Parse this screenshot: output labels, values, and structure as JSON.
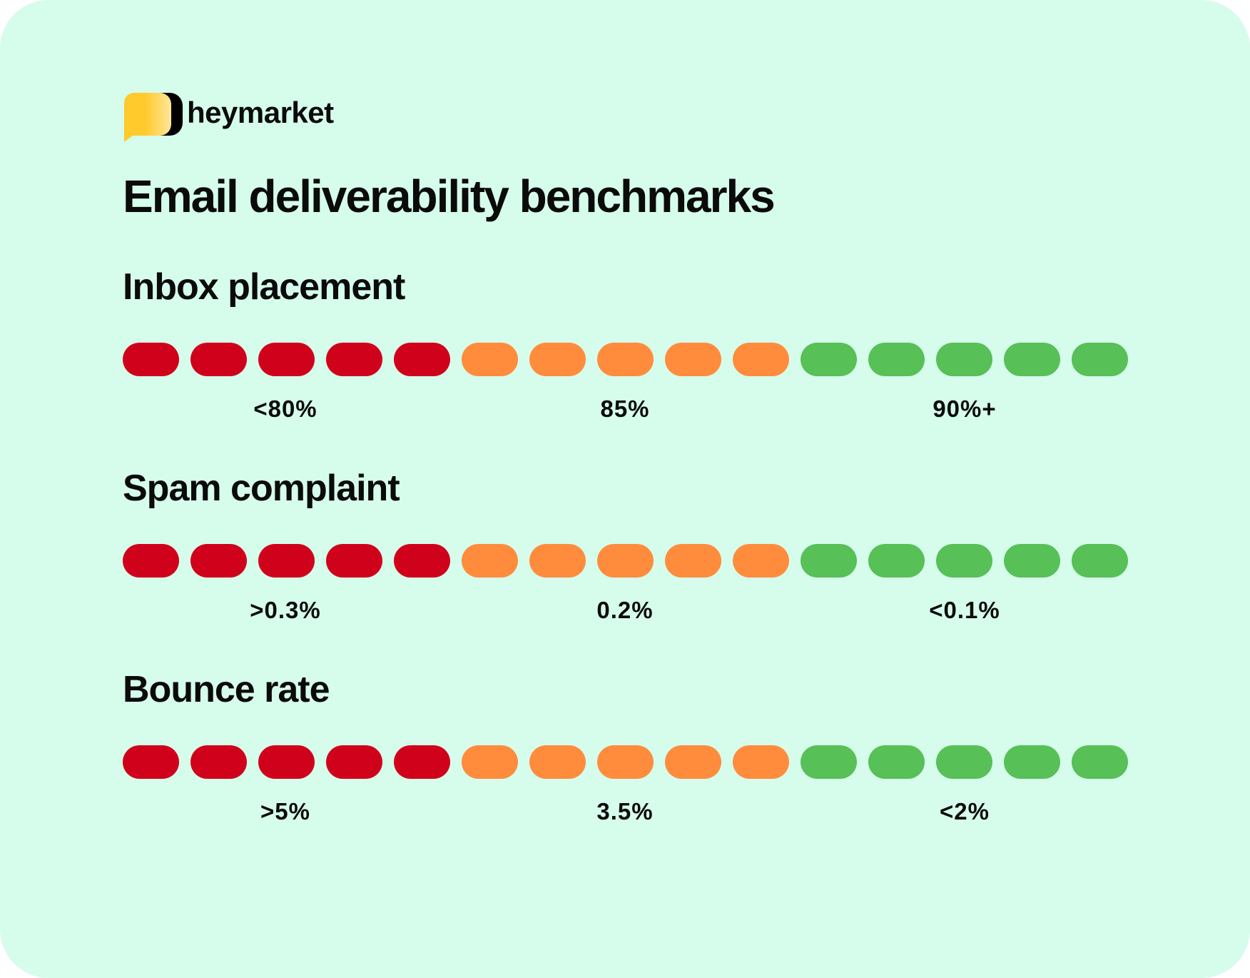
{
  "brand": {
    "name": "heymarket"
  },
  "title": "Email deliverability benchmarks",
  "colors": {
    "background": "#d6fcec",
    "poor": "#d0021b",
    "average": "#ff8c3d",
    "good": "#57c057",
    "logo_yellow": "#ffca2c"
  },
  "segments_per_level": 5,
  "sections": [
    {
      "heading": "Inbox placement",
      "labels": [
        "<80%",
        "85%",
        "90%+"
      ]
    },
    {
      "heading": "Spam complaint",
      "labels": [
        ">0.3%",
        "0.2%",
        "<0.1%"
      ]
    },
    {
      "heading": "Bounce rate",
      "labels": [
        ">5%",
        "3.5%",
        "<2%"
      ]
    }
  ]
}
